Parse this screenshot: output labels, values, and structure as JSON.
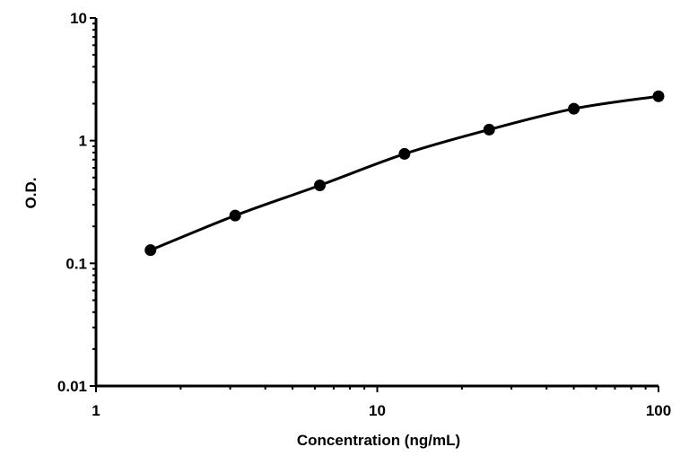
{
  "chart_data": {
    "type": "scatter",
    "title": "",
    "xlabel": "Concentration (ng/mL)",
    "ylabel": "O.D.",
    "x_scale": "log",
    "y_scale": "log",
    "xlim": [
      1,
      100
    ],
    "ylim": [
      0.01,
      10
    ],
    "x_tick_labels": [
      "1",
      "10",
      "100"
    ],
    "y_tick_labels": [
      "0.01",
      "0.1",
      "1",
      "10"
    ],
    "x_tick_values": [
      1,
      10,
      100
    ],
    "y_tick_values": [
      0.01,
      0.1,
      1,
      10
    ],
    "grid": false,
    "legend": "none",
    "series": [
      {
        "x": [
          1.5625,
          3.125,
          6.25,
          12.5,
          25,
          50,
          100
        ],
        "y": [
          0.128,
          0.245,
          0.432,
          0.78,
          1.23,
          1.82,
          2.3
        ],
        "marker": "circle",
        "line": "smooth-fit",
        "color": "#000000"
      }
    ]
  }
}
